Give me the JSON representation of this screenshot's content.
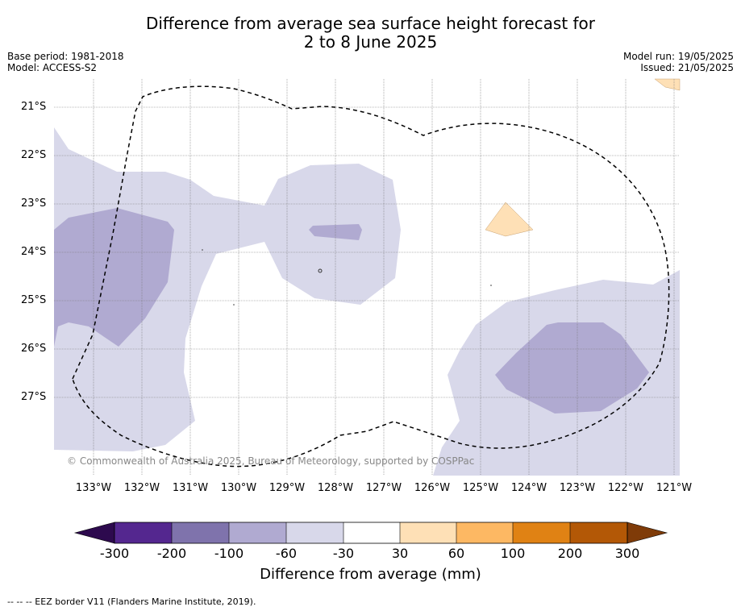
{
  "title_line1": "Difference from average sea surface height forecast for",
  "title_line2": "2 to 8 June 2025",
  "base_period": "Base period: 1981-2018",
  "model": "Model: ACCESS-S2",
  "model_run": "Model run: 19/05/2025",
  "issued": "Issued: 21/05/2025",
  "copyright": "© Commonwealth of Australia 2025, Bureau of Meteorology, supported by COSPPac",
  "lat_labels": [
    "21°S",
    "22°S",
    "23°S",
    "24°S",
    "25°S",
    "26°S",
    "27°S"
  ],
  "lon_labels": [
    "133°W",
    "132°W",
    "131°W",
    "130°W",
    "129°W",
    "128°W",
    "127°W",
    "126°W",
    "125°W",
    "124°W",
    "123°W",
    "122°W",
    "121°W"
  ],
  "colorbar": {
    "labels": [
      "-300",
      "-200",
      "-100",
      "-60",
      "-30",
      "30",
      "60",
      "100",
      "200",
      "300"
    ],
    "colors": [
      "#2d0a4e",
      "#54278f",
      "#7f73ac",
      "#b0aad1",
      "#d8d8ea",
      "#ffffff",
      "#fee0b6",
      "#fdb863",
      "#e08214",
      "#b35806",
      "#7f3b08"
    ],
    "title": "Difference from average (mm)"
  },
  "footnote": "--  --  -- EEZ border V11 (Flanders Marine Institute, 2019)."
}
